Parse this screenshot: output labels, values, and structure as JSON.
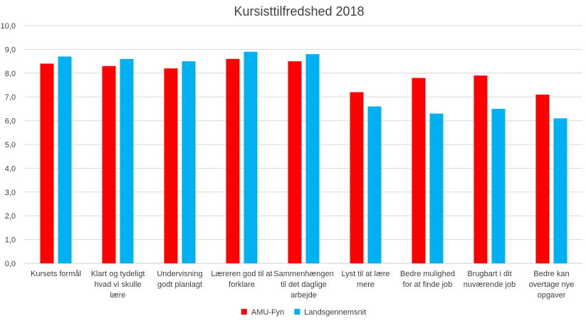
{
  "chart_data": {
    "type": "bar",
    "title": "Kursisttilfredshed 2018",
    "xlabel": "",
    "ylabel": "",
    "ylim": [
      0,
      10
    ],
    "ytick_step": 1,
    "y_ticks": [
      "0,0",
      "1,0",
      "2,0",
      "3,0",
      "4,0",
      "5,0",
      "6,0",
      "7,0",
      "8,0",
      "9,0",
      "10,0"
    ],
    "grid": true,
    "legend_position": "bottom",
    "categories": [
      [
        "Kursets formål"
      ],
      [
        "Klart og tydeligt",
        "hvad vi skulle",
        "lære"
      ],
      [
        "Undervisning",
        "godt planlagt"
      ],
      [
        "Læreren god til at",
        "forklare"
      ],
      [
        "Sammenhængen",
        "til det daglige",
        "arbejde"
      ],
      [
        "Lyst til at lære",
        "mere"
      ],
      [
        "Bedre mulighed",
        "for at finde job"
      ],
      [
        "Brugbart i dit",
        "nuværende job"
      ],
      [
        "Bedre kan",
        "overtage nye",
        "opgaver"
      ]
    ],
    "series": [
      {
        "name": "AMU-Fyn",
        "color": "#ff0000",
        "values": [
          8.4,
          8.3,
          8.2,
          8.6,
          8.5,
          7.2,
          7.8,
          7.9,
          7.1
        ]
      },
      {
        "name": "Landsgennemsnit",
        "color": "#00b0f0",
        "values": [
          8.7,
          8.6,
          8.5,
          8.9,
          8.8,
          6.6,
          6.3,
          6.5,
          6.1
        ]
      }
    ]
  }
}
